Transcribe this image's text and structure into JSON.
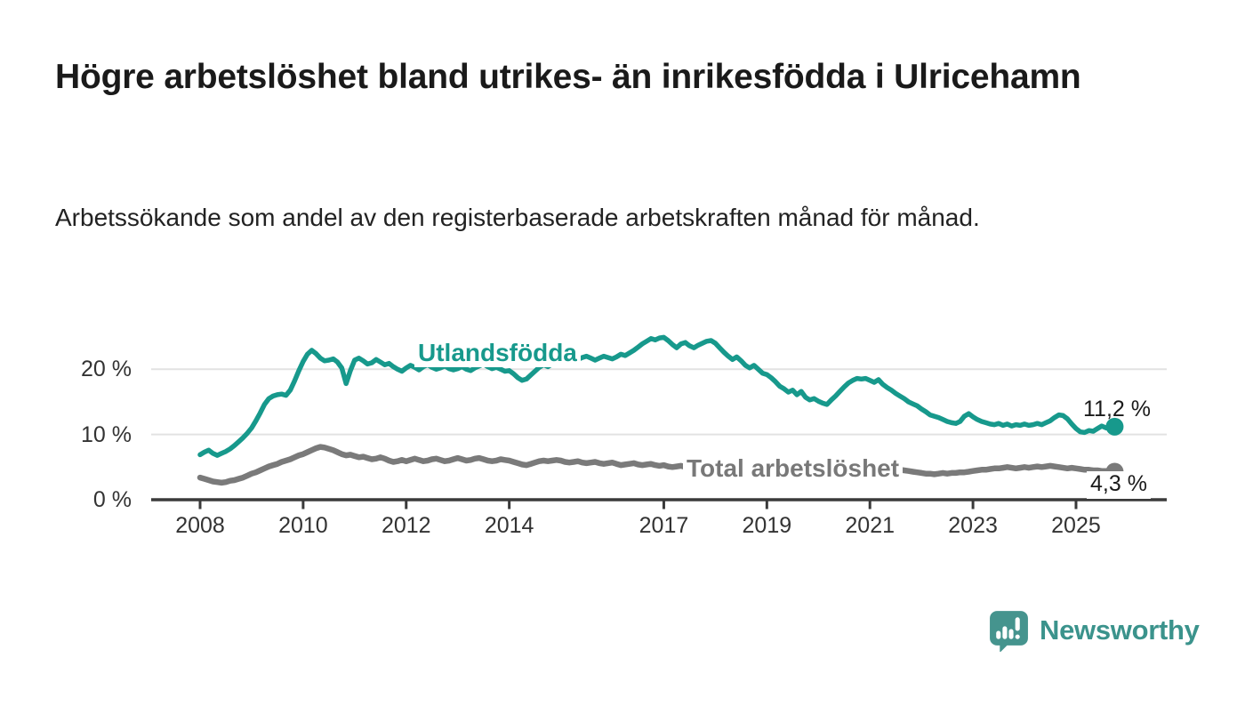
{
  "title": "Högre arbetslöshet bland utrikes- än inrikesfödda i Ulricehamn",
  "subtitle": "Arbetssökande som andel av den registerbaserade arbetskraften månad för månad.",
  "branding": {
    "name": "Newsworthy",
    "icon": "bar-chart-speech-bubble-icon",
    "icon_color": "#45948e",
    "text_color": "#3b938c"
  },
  "chart_data": {
    "type": "line",
    "title": "Högre arbetslöshet bland utrikes- än inrikesfödda i Ulricehamn",
    "subtitle": "Arbetssökande som andel av den registerbaserade arbetskraften månad för månad.",
    "frequency": "monthly",
    "x_start": "2008-01",
    "x_end": "2025-10",
    "ylim": [
      0,
      26.5
    ],
    "grid": "horizontal",
    "y_ticks": [
      {
        "label": "0 %",
        "value": 0
      },
      {
        "label": "10 %",
        "value": 10
      },
      {
        "label": "20 %",
        "value": 20
      }
    ],
    "x_ticks": [
      {
        "label": "2008",
        "year": 2008
      },
      {
        "label": "2010",
        "year": 2010
      },
      {
        "label": "2012",
        "year": 2012
      },
      {
        "label": "2014",
        "year": 2014
      },
      {
        "label": "2017",
        "year": 2017
      },
      {
        "label": "2019",
        "year": 2019
      },
      {
        "label": "2021",
        "year": 2021
      },
      {
        "label": "2023",
        "year": 2023
      },
      {
        "label": "2025",
        "year": 2025
      }
    ],
    "series": [
      {
        "name": "Utlandsfödda",
        "color": "#17998c",
        "end_value": 11.2,
        "end_label": "11,2 %",
        "values": [
          6.9,
          7.3,
          7.6,
          7.1,
          6.8,
          7.1,
          7.4,
          7.8,
          8.3,
          8.9,
          9.5,
          10.2,
          11.0,
          12.1,
          13.3,
          14.6,
          15.5,
          15.9,
          16.1,
          16.2,
          16.0,
          16.8,
          18.2,
          19.8,
          21.2,
          22.3,
          22.9,
          22.4,
          21.7,
          21.3,
          21.4,
          21.6,
          21.1,
          20.2,
          17.8,
          19.8,
          21.4,
          21.7,
          21.3,
          20.8,
          21.0,
          21.5,
          21.1,
          20.7,
          20.9,
          20.4,
          20.0,
          19.7,
          20.2,
          20.6,
          20.3,
          19.9,
          20.4,
          20.7,
          20.3,
          20.0,
          20.2,
          20.5,
          20.1,
          19.9,
          20.1,
          20.4,
          20.0,
          19.8,
          20.2,
          20.5,
          20.8,
          20.4,
          20.1,
          20.3,
          20.0,
          19.7,
          19.8,
          19.3,
          18.7,
          18.3,
          18.5,
          19.1,
          19.7,
          20.3,
          20.7,
          20.4,
          20.8,
          21.1,
          21.4,
          21.2,
          21.6,
          21.9,
          21.5,
          21.8,
          22.0,
          21.7,
          21.4,
          21.7,
          22.0,
          21.8,
          21.6,
          21.9,
          22.3,
          22.1,
          22.5,
          22.9,
          23.4,
          23.9,
          24.3,
          24.7,
          24.5,
          24.8,
          24.9,
          24.4,
          23.8,
          23.3,
          23.9,
          24.1,
          23.6,
          23.3,
          23.7,
          24.0,
          24.3,
          24.4,
          24.0,
          23.3,
          22.6,
          22.0,
          21.5,
          21.9,
          21.3,
          20.6,
          20.2,
          20.6,
          20.0,
          19.4,
          19.2,
          18.7,
          18.1,
          17.4,
          17.0,
          16.5,
          16.8,
          16.1,
          16.6,
          15.7,
          15.3,
          15.5,
          15.1,
          14.8,
          14.6,
          15.3,
          15.9,
          16.6,
          17.3,
          17.9,
          18.3,
          18.6,
          18.5,
          18.6,
          18.3,
          18.0,
          18.4,
          17.7,
          17.2,
          16.8,
          16.3,
          15.9,
          15.5,
          15.0,
          14.7,
          14.4,
          13.9,
          13.5,
          13.0,
          12.8,
          12.6,
          12.3,
          12.0,
          11.8,
          11.7,
          12.0,
          12.8,
          13.2,
          12.7,
          12.3,
          12.0,
          11.8,
          11.6,
          11.5,
          11.7,
          11.4,
          11.6,
          11.3,
          11.5,
          11.4,
          11.6,
          11.4,
          11.5,
          11.7,
          11.5,
          11.8,
          12.1,
          12.6,
          13.0,
          12.9,
          12.4,
          11.6,
          10.9,
          10.4,
          10.3,
          10.6,
          10.5,
          10.9,
          11.3,
          11.0,
          10.9,
          11.2
        ]
      },
      {
        "name": "Total arbetslöshet",
        "color": "#7a7a7a",
        "end_value": 4.3,
        "end_label": "4,3 %",
        "values": [
          3.4,
          3.2,
          3.0,
          2.8,
          2.7,
          2.6,
          2.7,
          2.9,
          3.0,
          3.2,
          3.4,
          3.7,
          4.0,
          4.2,
          4.5,
          4.8,
          5.1,
          5.3,
          5.5,
          5.8,
          6.0,
          6.2,
          6.5,
          6.8,
          7.0,
          7.3,
          7.6,
          7.9,
          8.1,
          8.0,
          7.8,
          7.6,
          7.3,
          7.0,
          6.8,
          6.9,
          6.7,
          6.5,
          6.6,
          6.4,
          6.2,
          6.3,
          6.5,
          6.3,
          6.0,
          5.8,
          5.9,
          6.1,
          5.9,
          6.1,
          6.3,
          6.1,
          5.9,
          6.0,
          6.2,
          6.3,
          6.1,
          5.9,
          6.0,
          6.2,
          6.4,
          6.2,
          6.0,
          6.1,
          6.3,
          6.4,
          6.2,
          6.0,
          5.9,
          6.0,
          6.2,
          6.1,
          6.0,
          5.8,
          5.6,
          5.4,
          5.3,
          5.5,
          5.7,
          5.9,
          6.0,
          5.9,
          6.0,
          6.1,
          6.0,
          5.8,
          5.7,
          5.8,
          5.9,
          5.7,
          5.6,
          5.7,
          5.8,
          5.6,
          5.5,
          5.6,
          5.7,
          5.5,
          5.3,
          5.4,
          5.5,
          5.6,
          5.4,
          5.3,
          5.4,
          5.5,
          5.3,
          5.2,
          5.3,
          5.1,
          5.0,
          5.1,
          5.2,
          5.0,
          4.9,
          5.0,
          5.1,
          4.9,
          4.8,
          4.9,
          4.8,
          4.7,
          4.6,
          4.7,
          4.8,
          4.6,
          4.5,
          4.6,
          4.5,
          4.4,
          4.5,
          4.6,
          4.5,
          4.4,
          4.5,
          4.4,
          4.3,
          4.4,
          4.5,
          4.4,
          4.3,
          4.2,
          4.3,
          4.4,
          4.5,
          4.6,
          4.8,
          5.2,
          5.5,
          5.7,
          5.8,
          5.7,
          5.6,
          5.5,
          5.4,
          5.5,
          5.4,
          5.3,
          5.2,
          5.0,
          4.9,
          4.8,
          4.7,
          4.6,
          4.5,
          4.4,
          4.3,
          4.2,
          4.1,
          4.0,
          4.0,
          3.9,
          4.0,
          4.1,
          4.0,
          4.1,
          4.1,
          4.2,
          4.2,
          4.3,
          4.4,
          4.5,
          4.6,
          4.6,
          4.7,
          4.8,
          4.8,
          4.9,
          5.0,
          4.9,
          4.8,
          4.9,
          5.0,
          4.9,
          5.0,
          5.1,
          5.0,
          5.1,
          5.2,
          5.1,
          5.0,
          4.9,
          4.8,
          4.9,
          4.8,
          4.7,
          4.6,
          4.6,
          4.5,
          4.5,
          4.4,
          4.4,
          4.3,
          4.3
        ]
      }
    ]
  }
}
